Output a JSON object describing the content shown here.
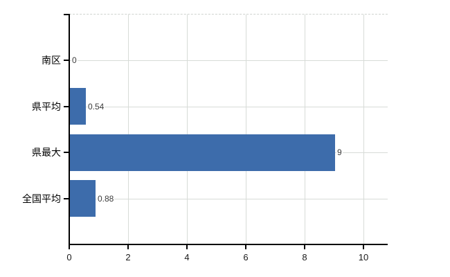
{
  "chart_data": {
    "type": "bar",
    "orientation": "horizontal",
    "title": "",
    "xlabel": "",
    "ylabel": "",
    "categories": [
      "南区",
      "県平均",
      "県最大",
      "全国平均"
    ],
    "values": [
      0,
      0.54,
      9,
      0.88
    ],
    "value_labels": [
      "0",
      "0.54",
      "9",
      "0.88"
    ],
    "xticks": [
      0,
      2,
      4,
      6,
      8,
      10
    ],
    "xtick_labels": [
      "0",
      "2",
      "4",
      "6",
      "8",
      "10"
    ],
    "xlim": [
      0,
      10.82
    ],
    "grid": true,
    "legend": false,
    "colors": {
      "bar": "#3d6cab",
      "gridline": "#d7dbd7",
      "top_border": "#cfd3cf",
      "axis": "#000000",
      "value_label": "#3b3b3b",
      "category_label": "#000000",
      "tick_label": "#1a1a1a",
      "background": "#ffffff"
    }
  }
}
